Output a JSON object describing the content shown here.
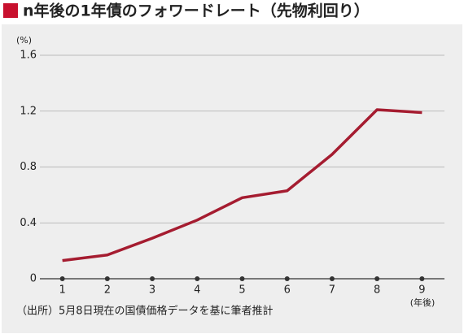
{
  "chart_data": {
    "type": "line",
    "title": "n年後の1年債のフォワードレート（先物利回り）",
    "y_unit": "(%)",
    "x_unit": "(年後)",
    "source": "（出所）5月8日現在の国債価格データを基に筆者推計",
    "x": [
      1,
      2,
      3,
      4,
      5,
      6,
      7,
      8,
      9
    ],
    "series": [
      {
        "color": "#a51c30",
        "values": [
          0.13,
          0.17,
          0.29,
          0.42,
          0.58,
          0.63,
          0.89,
          1.21,
          1.19
        ]
      }
    ],
    "xlim": [
      0.5,
      9.5
    ],
    "xticks": [
      1,
      2,
      3,
      4,
      5,
      6,
      7,
      8,
      9
    ],
    "ylim": [
      0,
      1.6
    ],
    "yticks": [
      0,
      0.4,
      0.8,
      1.2,
      1.6
    ],
    "grid": true
  }
}
